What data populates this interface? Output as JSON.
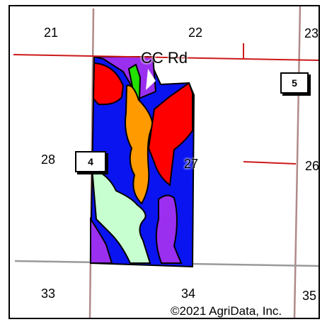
{
  "map": {
    "sections": [
      "21",
      "22",
      "23",
      "28",
      "27",
      "26",
      "33",
      "34",
      "35"
    ],
    "road_label": "CC Rd",
    "route_markers": [
      "4",
      "5"
    ],
    "copyright": "©2021 AgriData, Inc.",
    "colors": {
      "road": "#cc1a1a",
      "section_line_vertical": "#b08a8a",
      "section_line_horizontal": "#9a9a9a",
      "soil_blue": "#0a14f0",
      "soil_purple": "#9a2ff0",
      "soil_red": "#ff0000",
      "soil_green": "#22e000",
      "soil_orange": "#ff9a00",
      "soil_mint": "#c8ffd0"
    }
  }
}
